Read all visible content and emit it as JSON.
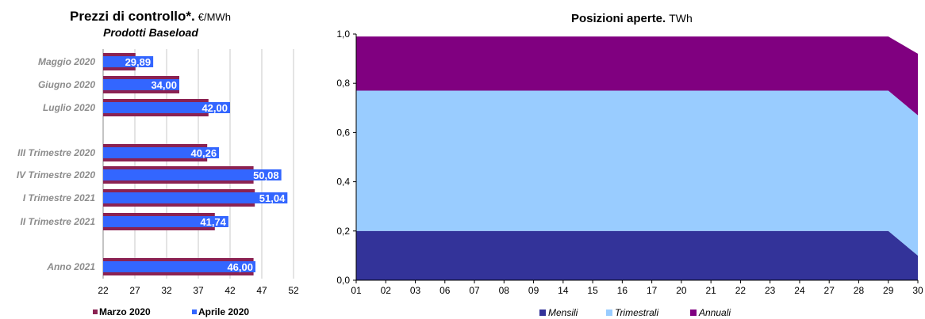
{
  "chart_data": [
    {
      "type": "bar",
      "title": "Prezzi di controllo*.",
      "title_unit": "€/MWh",
      "subtitle": "Prodotti Baseload",
      "orientation": "horizontal",
      "categories": [
        "Maggio 2020",
        "Giugno 2020",
        "Luglio 2020",
        "III Trimestre 2020",
        "IV Trimestre 2020",
        "I Trimestre 2021",
        "II Trimestre 2021",
        "Anno 2021"
      ],
      "series": [
        {
          "name": "Marzo 2020",
          "color": "#8b2252",
          "values": [
            27.1,
            34.0,
            38.6,
            38.4,
            45.7,
            45.9,
            39.6,
            45.7
          ]
        },
        {
          "name": "Aprile 2020",
          "color": "#3366ff",
          "values": [
            29.89,
            34.0,
            42.0,
            40.26,
            50.08,
            51.04,
            41.74,
            46.0
          ]
        }
      ],
      "data_labels": [
        "29,89",
        "34,00",
        "42,00",
        "40,26",
        "50,08",
        "51,04",
        "41,74",
        "46,00"
      ],
      "xlim": [
        22,
        52
      ],
      "xticks": [
        "22",
        "27",
        "32",
        "37",
        "42",
        "47",
        "52"
      ],
      "grid": true,
      "legend_position": "bottom"
    },
    {
      "type": "area",
      "stacked": true,
      "title": "Posizioni aperte.",
      "title_unit": "TWh",
      "x": [
        "01",
        "02",
        "03",
        "06",
        "07",
        "08",
        "09",
        "14",
        "15",
        "16",
        "17",
        "20",
        "21",
        "22",
        "23",
        "24",
        "27",
        "28",
        "29",
        "30"
      ],
      "series": [
        {
          "name": "Mensili",
          "color": "#333399",
          "values": [
            0.2,
            0.2,
            0.2,
            0.2,
            0.2,
            0.2,
            0.2,
            0.2,
            0.2,
            0.2,
            0.2,
            0.2,
            0.2,
            0.2,
            0.2,
            0.2,
            0.2,
            0.2,
            0.2,
            0.1
          ]
        },
        {
          "name": "Trimestrali",
          "color": "#99ccff",
          "values": [
            0.57,
            0.57,
            0.57,
            0.57,
            0.57,
            0.57,
            0.57,
            0.57,
            0.57,
            0.57,
            0.57,
            0.57,
            0.57,
            0.57,
            0.57,
            0.57,
            0.57,
            0.57,
            0.57,
            0.57
          ]
        },
        {
          "name": "Annuali",
          "color": "#800080",
          "values": [
            0.22,
            0.22,
            0.22,
            0.22,
            0.22,
            0.22,
            0.22,
            0.22,
            0.22,
            0.22,
            0.22,
            0.22,
            0.22,
            0.22,
            0.22,
            0.22,
            0.22,
            0.22,
            0.22,
            0.25
          ]
        }
      ],
      "ylim": [
        0,
        1.0
      ],
      "yticks": [
        "0,0",
        "0,2",
        "0,4",
        "0,6",
        "0,8",
        "1,0"
      ],
      "grid": false,
      "legend_position": "bottom"
    }
  ]
}
